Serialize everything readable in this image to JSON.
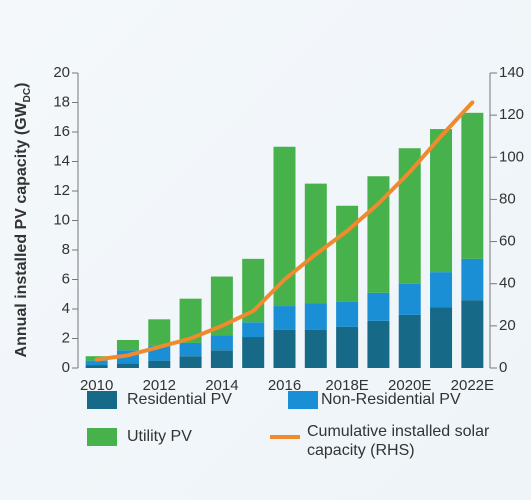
{
  "chart_data": {
    "type": "bar",
    "stacked": true,
    "y_label": [
      "Annual installed PV capacity (GW",
      "DC",
      ")"
    ],
    "categories": [
      "2010",
      null,
      "2012",
      null,
      "2014",
      null,
      "2016",
      null,
      "2018E",
      null,
      "2020E",
      null,
      "2022E"
    ],
    "series": [
      {
        "name": "Residential PV",
        "color": "#176a87",
        "values": [
          0.2,
          0.3,
          0.5,
          0.8,
          1.2,
          2.1,
          2.6,
          2.6,
          2.8,
          3.2,
          3.6,
          4.1,
          4.6
        ]
      },
      {
        "name": "Non-Residential PV",
        "color": "#1a8fd6",
        "values": [
          0.3,
          0.9,
          1.0,
          0.9,
          1.0,
          1.0,
          1.6,
          1.8,
          1.7,
          1.9,
          2.1,
          2.4,
          2.8
        ]
      },
      {
        "name": "Utility PV",
        "color": "#47b14b",
        "values": [
          0.3,
          0.7,
          1.8,
          3.0,
          4.0,
          4.3,
          10.8,
          8.1,
          6.5,
          7.9,
          9.2,
          9.7,
          9.9
        ]
      },
      {
        "name": "Cumulative installed solar capacity (RHS)",
        "type": "line",
        "axis": "y2",
        "color": "#f08a2c",
        "values": [
          4,
          6,
          10,
          14,
          20,
          27,
          42,
          54,
          65,
          78,
          93,
          110,
          126
        ]
      }
    ],
    "ylim": [
      0,
      20
    ],
    "yticks": [
      0,
      2,
      4,
      6,
      8,
      10,
      12,
      14,
      16,
      18,
      20
    ],
    "y2lim": [
      0,
      140
    ],
    "y2ticks": [
      0,
      20,
      40,
      60,
      80,
      100,
      120,
      140
    ]
  }
}
